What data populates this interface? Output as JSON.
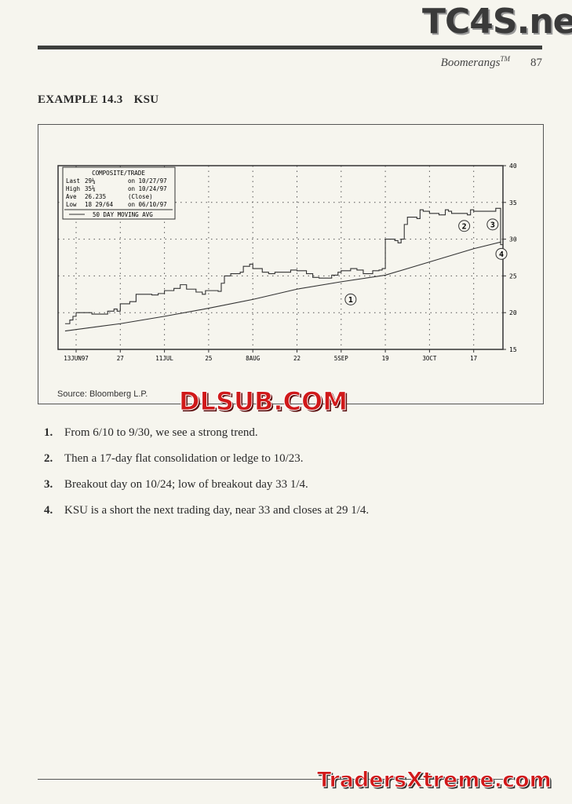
{
  "header": {
    "running_title": "Boomerangs",
    "trademark": "TM",
    "page_number": "87"
  },
  "example": {
    "label": "EXAMPLE 14.3",
    "ticker": "KSU"
  },
  "chart_data": {
    "type": "line",
    "legend": {
      "title": "COMPOSITE/TRADE",
      "rows": [
        [
          "Last",
          "29¼",
          "on 10/27/97"
        ],
        [
          "High",
          "35⅛",
          "on 10/24/97"
        ],
        [
          "Ave",
          "26.235",
          "(Close)"
        ],
        [
          "Low",
          "18 29/64",
          "on 06/10/97"
        ]
      ],
      "ma_label": "50 DAY MOVING AVG",
      "placement": "top-left"
    },
    "x_ticks": [
      {
        "date": "1997-06-13",
        "label": "13JUN97"
      },
      {
        "date": "1997-06-27",
        "label": "27"
      },
      {
        "date": "1997-07-11",
        "label": "11JUL"
      },
      {
        "date": "1997-07-25",
        "label": "25"
      },
      {
        "date": "1997-08-08",
        "label": "8AUG"
      },
      {
        "date": "1997-08-22",
        "label": "22"
      },
      {
        "date": "1997-09-05",
        "label": "5SEP"
      },
      {
        "date": "1997-09-19",
        "label": "19"
      },
      {
        "date": "1997-10-03",
        "label": "3OCT"
      },
      {
        "date": "1997-10-17",
        "label": "17"
      }
    ],
    "y_ticks": [
      15,
      20,
      25,
      30,
      35,
      40
    ],
    "ylim": [
      15,
      40
    ],
    "y_axis_side": "right",
    "grid": true,
    "series": [
      {
        "style": "step",
        "points": [
          [
            "1997-06-10",
            18.5
          ],
          [
            "1997-06-11",
            19
          ],
          [
            "1997-06-12",
            19.5
          ],
          [
            "1997-06-13",
            20
          ],
          [
            "1997-06-16",
            20
          ],
          [
            "1997-06-18",
            19.8
          ],
          [
            "1997-06-20",
            19.8
          ],
          [
            "1997-06-23",
            20.2
          ],
          [
            "1997-06-25",
            20.5
          ],
          [
            "1997-06-26",
            20.2
          ],
          [
            "1997-06-27",
            21.2
          ],
          [
            "1997-06-30",
            21.5
          ],
          [
            "1997-07-02",
            22.5
          ],
          [
            "1997-07-07",
            22.4
          ],
          [
            "1997-07-09",
            22.6
          ],
          [
            "1997-07-11",
            23
          ],
          [
            "1997-07-14",
            23.3
          ],
          [
            "1997-07-16",
            23.8
          ],
          [
            "1997-07-18",
            23.2
          ],
          [
            "1997-07-21",
            22.8
          ],
          [
            "1997-07-23",
            22.5
          ],
          [
            "1997-07-24",
            23
          ],
          [
            "1997-07-28",
            22.9
          ],
          [
            "1997-07-29",
            24
          ],
          [
            "1997-07-30",
            25
          ],
          [
            "1997-08-01",
            25.3
          ],
          [
            "1997-08-04",
            25.5
          ],
          [
            "1997-08-05",
            26.3
          ],
          [
            "1997-08-07",
            26.6
          ],
          [
            "1997-08-08",
            26
          ],
          [
            "1997-08-11",
            25.5
          ],
          [
            "1997-08-13",
            25.3
          ],
          [
            "1997-08-15",
            25.5
          ],
          [
            "1997-08-18",
            25.5
          ],
          [
            "1997-08-20",
            25.8
          ],
          [
            "1997-08-22",
            25.7
          ],
          [
            "1997-08-25",
            25.3
          ],
          [
            "1997-08-27",
            24.8
          ],
          [
            "1997-08-29",
            24.7
          ],
          [
            "1997-09-02",
            25.1
          ],
          [
            "1997-09-04",
            25.5
          ],
          [
            "1997-09-05",
            25.7
          ],
          [
            "1997-09-08",
            26
          ],
          [
            "1997-09-10",
            25.8
          ],
          [
            "1997-09-12",
            25.3
          ],
          [
            "1997-09-15",
            25.7
          ],
          [
            "1997-09-17",
            25.8
          ],
          [
            "1997-09-18",
            26
          ],
          [
            "1997-09-19",
            30
          ],
          [
            "1997-09-22",
            29.8
          ],
          [
            "1997-09-23",
            29.5
          ],
          [
            "1997-09-24",
            30
          ],
          [
            "1997-09-25",
            32
          ],
          [
            "1997-09-26",
            33
          ],
          [
            "1997-09-29",
            32.8
          ],
          [
            "1997-09-30",
            34
          ],
          [
            "1997-10-01",
            33.8
          ],
          [
            "1997-10-03",
            33.5
          ],
          [
            "1997-10-06",
            33.3
          ],
          [
            "1997-10-08",
            34
          ],
          [
            "1997-10-09",
            33.8
          ],
          [
            "1997-10-10",
            33.5
          ],
          [
            "1997-10-13",
            33.5
          ],
          [
            "1997-10-15",
            33.3
          ],
          [
            "1997-10-16",
            34
          ],
          [
            "1997-10-17",
            33.8
          ],
          [
            "1997-10-20",
            33.8
          ],
          [
            "1997-10-22",
            33.8
          ],
          [
            "1997-10-23",
            33.8
          ],
          [
            "1997-10-24",
            34.2
          ],
          [
            "1997-10-27",
            29.25
          ]
        ]
      },
      {
        "name": "50 DAY MOVING AVG",
        "style": "line",
        "points": [
          [
            "1997-06-10",
            17.5
          ],
          [
            "1997-06-27",
            18.5
          ],
          [
            "1997-07-11",
            19.5
          ],
          [
            "1997-07-25",
            20.6
          ],
          [
            "1997-08-08",
            21.8
          ],
          [
            "1997-08-22",
            23.2
          ],
          [
            "1997-09-05",
            24.2
          ],
          [
            "1997-09-19",
            25.1
          ],
          [
            "1997-10-03",
            26.9
          ],
          [
            "1997-10-17",
            28.7
          ],
          [
            "1997-10-27",
            29.6
          ]
        ]
      }
    ],
    "annotations": [
      {
        "label": "1",
        "date": "1997-09-08",
        "value": 21.8
      },
      {
        "label": "2",
        "date": "1997-10-14",
        "value": 31.8
      },
      {
        "label": "3",
        "date": "1997-10-23",
        "value": 32
      },
      {
        "label": "4",
        "date": "1997-10-27",
        "value": 28
      }
    ],
    "source": "Source: Bloomberg L.P."
  },
  "list": [
    {
      "num": "1.",
      "text": "From 6/10 to 9/30, we see a strong trend."
    },
    {
      "num": "2.",
      "text": "Then a 17-day flat consolidation or ledge to 10/23."
    },
    {
      "num": "3.",
      "text": "Breakout day on 10/24; low of breakout day 33 1/4."
    },
    {
      "num": "4.",
      "text": "KSU is a short the next trading day, near 33 and closes at 29 1/4."
    }
  ],
  "watermarks": {
    "top": "TC4S.net",
    "middle": "DLSUB.COM",
    "bottom": "TradersXtreme.com"
  }
}
